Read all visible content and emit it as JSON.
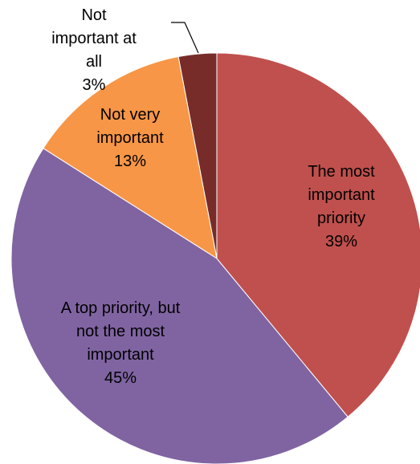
{
  "chart_data": {
    "type": "pie",
    "categories": [
      "The most important priority",
      "A top priority, but not the most important",
      "Not very important",
      "Not important at all"
    ],
    "values": [
      39,
      45,
      13,
      3
    ],
    "value_labels": [
      "39%",
      "45%",
      "13%",
      "3%"
    ],
    "colors": [
      "#c0504d",
      "#8064a2",
      "#f79646",
      "#772c2a"
    ]
  }
}
